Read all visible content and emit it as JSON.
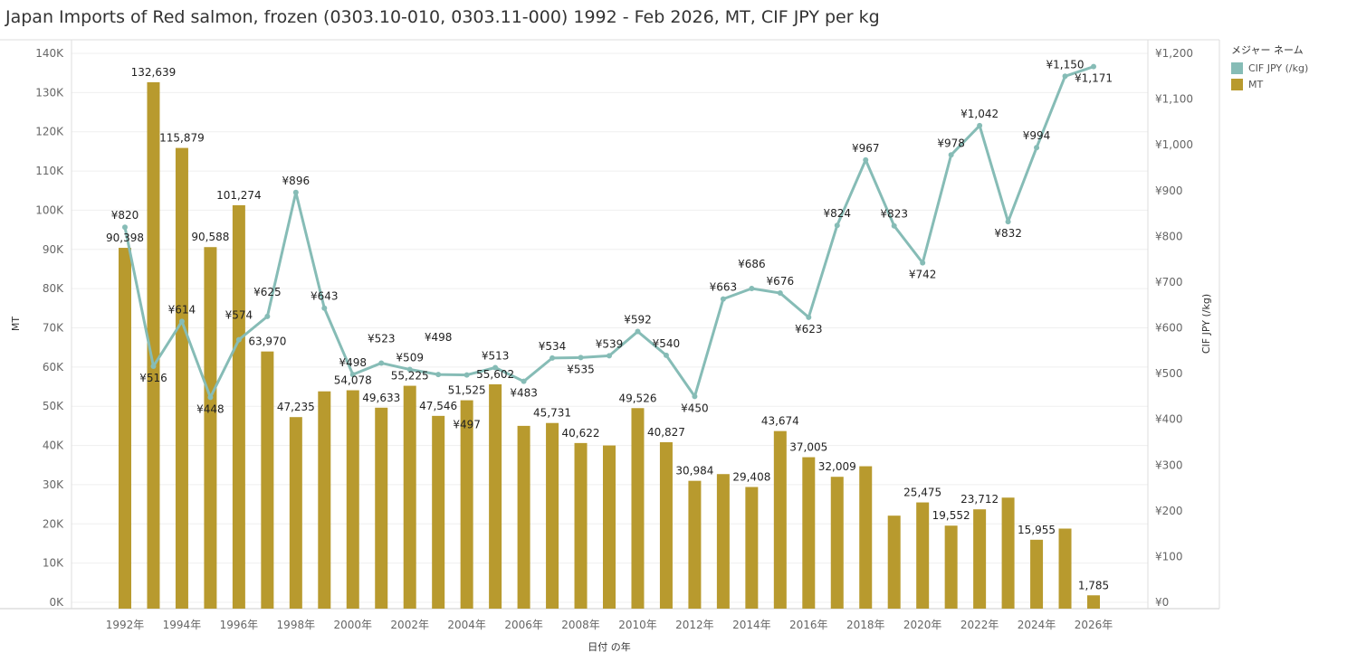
{
  "title": "Japan Imports of Red salmon, frozen (0303.10-010, 0303.11-000) 1992 - Feb 2026, MT, CIF JPY per kg",
  "legend": {
    "title": "メジャー ネーム",
    "items": [
      {
        "label": "CIF JPY (/kg)",
        "color": "#86bcb6"
      },
      {
        "label": "MT",
        "color": "#b89a2e"
      }
    ]
  },
  "chart_data": {
    "type": "bar+line",
    "xlabel": "日付 の年",
    "ylabel_left": "MT",
    "ylabel_right": "CIF JPY (/kg)",
    "ylim_left": [
      0,
      140000
    ],
    "ylim_right": [
      0,
      1200
    ],
    "left_ticks": [
      "0K",
      "10K",
      "20K",
      "30K",
      "40K",
      "50K",
      "60K",
      "70K",
      "80K",
      "90K",
      "100K",
      "110K",
      "120K",
      "130K",
      "140K"
    ],
    "right_ticks": [
      "¥0",
      "¥100",
      "¥200",
      "¥300",
      "¥400",
      "¥500",
      "¥600",
      "¥700",
      "¥800",
      "¥900",
      "¥1,000",
      "¥1,100",
      "¥1,200"
    ],
    "x_tick_labels": [
      "1992年",
      "1994年",
      "1996年",
      "1998年",
      "2000年",
      "2002年",
      "2004年",
      "2006年",
      "2008年",
      "2010年",
      "2012年",
      "2014年",
      "2016年",
      "2018年",
      "2020年",
      "2022年",
      "2024年",
      "2026年"
    ],
    "years": [
      1992,
      1993,
      1994,
      1995,
      1996,
      1997,
      1998,
      1999,
      2000,
      2001,
      2002,
      2003,
      2004,
      2005,
      2006,
      2007,
      2008,
      2009,
      2010,
      2011,
      2012,
      2013,
      2014,
      2015,
      2016,
      2017,
      2018,
      2019,
      2020,
      2021,
      2022,
      2023,
      2024,
      2025,
      2026
    ],
    "series": [
      {
        "name": "MT",
        "type": "bar",
        "color": "#b89a2e",
        "values": [
          90398,
          132639,
          115879,
          90588,
          101274,
          63970,
          47235,
          53800,
          54078,
          49633,
          55225,
          47546,
          51525,
          55602,
          45000,
          45731,
          40622,
          40000,
          49526,
          40827,
          30984,
          32700,
          29408,
          43674,
          37005,
          32009,
          34700,
          22100,
          25475,
          19552,
          23712,
          26700,
          15955,
          18800,
          1785
        ],
        "labels": [
          "90,398",
          "132,639",
          "115,879",
          "90,588",
          "101,274",
          "63,970",
          "47,235",
          "",
          "54,078",
          "49,633",
          "55,225",
          "47,546",
          "51,525",
          "55,602",
          "",
          "45,731",
          "40,622",
          "",
          "49,526",
          "40,827",
          "30,984",
          "",
          "29,408",
          "43,674",
          "37,005",
          "32,009",
          "",
          "",
          "25,475",
          "19,552",
          "23,712",
          "",
          "15,955",
          "",
          "1,785"
        ]
      },
      {
        "name": "CIF JPY (/kg)",
        "type": "line",
        "color": "#86bcb6",
        "values": [
          820,
          516,
          614,
          448,
          574,
          625,
          896,
          643,
          498,
          523,
          509,
          498,
          497,
          513,
          483,
          534,
          535,
          539,
          592,
          540,
          450,
          663,
          686,
          676,
          623,
          824,
          967,
          823,
          742,
          978,
          1042,
          832,
          994,
          1150,
          1171
        ],
        "labels": [
          "¥820",
          "¥516",
          "¥614",
          "¥448",
          "¥574",
          "¥625",
          "¥896",
          "¥643",
          "¥498",
          "¥523",
          "¥509",
          "¥498",
          "¥497",
          "¥513",
          "¥483",
          "¥534",
          "¥535",
          "¥539",
          "¥592",
          "¥540",
          "¥450",
          "¥663",
          "¥686",
          "¥676",
          "¥623",
          "¥824",
          "¥967",
          "¥823",
          "¥742",
          "¥978",
          "¥1,042",
          "¥832",
          "¥994",
          "¥1,150",
          "¥1,171"
        ]
      }
    ],
    "grid": true,
    "legend_position": "right"
  }
}
